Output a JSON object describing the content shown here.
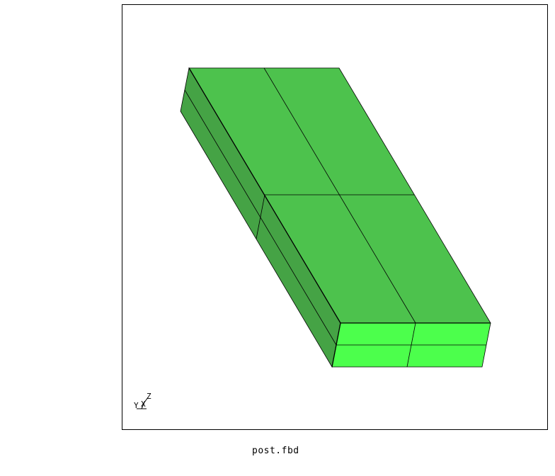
{
  "window": {
    "filename": "post.fbd"
  },
  "colors": {
    "top_face": "#4dc24d",
    "front_face": "#4cff4c",
    "left_face": "#45a345",
    "edge": "#000000",
    "background": "#ffffff"
  },
  "axes": {
    "y_label": "Y",
    "x_label": "X",
    "z_label": "Z"
  },
  "mesh": {
    "type": "box",
    "elements_top": 4,
    "elements_side_layers": 2
  }
}
